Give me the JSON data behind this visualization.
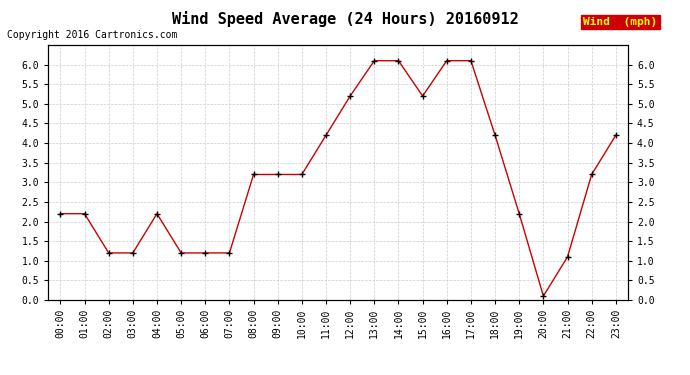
{
  "title": "Wind Speed Average (24 Hours) 20160912",
  "copyright": "Copyright 2016 Cartronics.com",
  "legend_label": "Wind  (mph)",
  "x_labels": [
    "00:00",
    "01:00",
    "02:00",
    "03:00",
    "04:00",
    "05:00",
    "06:00",
    "07:00",
    "08:00",
    "09:00",
    "10:00",
    "11:00",
    "12:00",
    "13:00",
    "14:00",
    "15:00",
    "16:00",
    "17:00",
    "18:00",
    "19:00",
    "20:00",
    "21:00",
    "22:00",
    "23:00"
  ],
  "y_values": [
    2.2,
    2.2,
    1.2,
    1.2,
    2.2,
    1.2,
    1.2,
    1.2,
    3.2,
    3.2,
    3.2,
    4.2,
    5.2,
    6.1,
    6.1,
    5.2,
    6.1,
    6.1,
    4.2,
    2.2,
    0.1,
    1.1,
    3.2,
    4.2
  ],
  "line_color": "#cc0000",
  "marker": "+",
  "marker_color": "#000000",
  "bg_color": "#ffffff",
  "grid_color": "#cccccc",
  "ylim": [
    0.0,
    6.5
  ],
  "yticks": [
    0.0,
    0.5,
    1.0,
    1.5,
    2.0,
    2.5,
    3.0,
    3.5,
    4.0,
    4.5,
    5.0,
    5.5,
    6.0
  ],
  "legend_bg": "#cc0000",
  "legend_text_color": "#ffff00",
  "title_fontsize": 11,
  "label_fontsize": 7,
  "copyright_fontsize": 7
}
